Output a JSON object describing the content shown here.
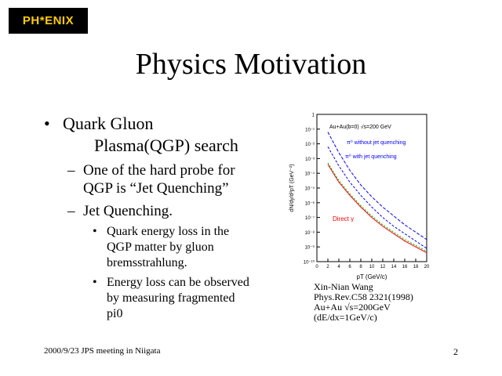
{
  "logo": {
    "text": "PH*ENIX"
  },
  "slide": {
    "title": "Physics Motivation"
  },
  "bullets": {
    "b1": {
      "marker": "•",
      "line1": "Quark Gluon",
      "line2": "Plasma(QGP) search"
    },
    "b1a": {
      "marker": "–",
      "line1": "One of the hard probe for",
      "line2": "QGP is “Jet Quenching”"
    },
    "b1b": {
      "marker": "–",
      "line1": "Jet Quenching."
    },
    "b1b1": {
      "marker": "•",
      "line1": "Quark energy loss in the",
      "line2": "QGP matter by gluon",
      "line3": "bremsstrahlung."
    },
    "b1b2": {
      "marker": "•",
      "line1": "Energy loss can be observed",
      "line2": "by measuring fragmented",
      "line3": "pi0"
    }
  },
  "chart_data": {
    "type": "line",
    "xlabel": "pT (GeV/c)",
    "ylabel": "dN/dy/d²pT (GeV⁻²)",
    "x_ticks": [
      "0",
      "2",
      "4",
      "6",
      "8",
      "10",
      "12",
      "14",
      "16",
      "18",
      "20"
    ],
    "y_ticks": [
      "1",
      "10⁻¹",
      "10⁻²",
      "10⁻³",
      "10⁻⁴",
      "10⁻⁵",
      "10⁻⁶",
      "10⁻⁷",
      "10⁻⁸",
      "10⁻⁹",
      "10⁻¹⁰"
    ],
    "xlim": [
      0,
      20
    ],
    "ylim_log10": [
      -10,
      0
    ],
    "annotations": {
      "system": "Au+Au(b=0) √s=200 GeV",
      "without": "π⁰ without jet quenching",
      "with": "π⁰ with jet quenching",
      "direct": "Direct γ"
    },
    "series": [
      {
        "key": "without",
        "color": "#0000ff",
        "x": [
          2,
          4,
          6,
          8,
          10,
          12,
          14,
          16,
          18,
          20
        ],
        "y_log10": [
          -1.2,
          -2.6,
          -3.8,
          -4.8,
          -5.6,
          -6.3,
          -6.9,
          -7.5,
          -8.0,
          -8.5
        ]
      },
      {
        "key": "with",
        "color": "#0000ff",
        "x": [
          2,
          4,
          6,
          8,
          10,
          12,
          14,
          16,
          18,
          20
        ],
        "y_log10": [
          -2.2,
          -3.5,
          -4.6,
          -5.5,
          -6.3,
          -7.0,
          -7.6,
          -8.1,
          -8.6,
          -9.1
        ]
      },
      {
        "key": "direct",
        "color": "#ff0000",
        "x": [
          2,
          4,
          6,
          8,
          10,
          12,
          14,
          16,
          18,
          20
        ],
        "y_log10": [
          -3.4,
          -4.6,
          -5.5,
          -6.3,
          -7.0,
          -7.6,
          -8.1,
          -8.6,
          -9.0,
          -9.4
        ]
      },
      {
        "key": "green",
        "color": "#00b000",
        "x": [
          2,
          4,
          6,
          8,
          10,
          12,
          14,
          16,
          18,
          20
        ],
        "y_log10": [
          -3.3,
          -4.5,
          -5.4,
          -6.2,
          -6.9,
          -7.5,
          -8.0,
          -8.5,
          -8.9,
          -9.3
        ]
      }
    ]
  },
  "citation": {
    "line1": "Xin-Nian Wang",
    "line2": "Phys.Rev.C58 2321(1998)",
    "line3": "Au+Au √s=200GeV",
    "line4": "(dE/dx=1GeV/c)"
  },
  "footer": {
    "text": "2000/9/23 JPS meeting in Niigata",
    "page": "2"
  }
}
